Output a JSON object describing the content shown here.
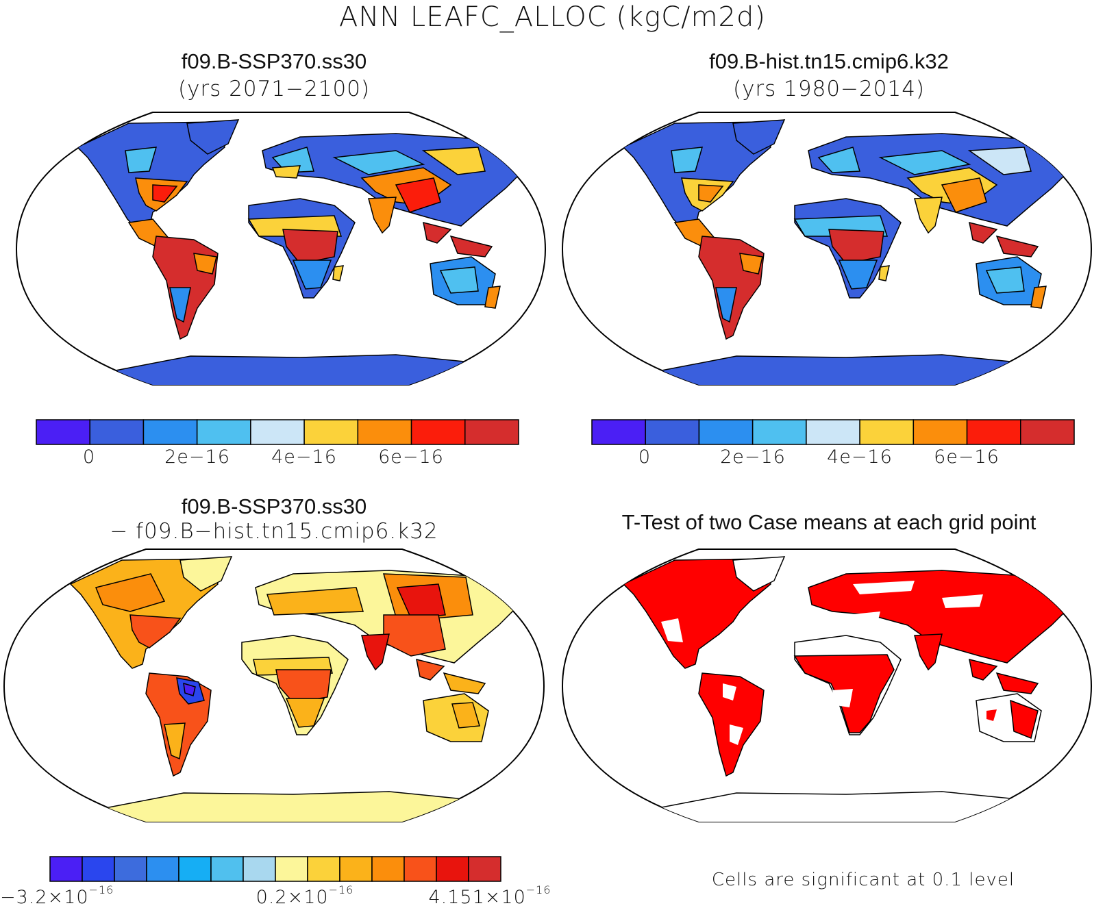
{
  "figure": {
    "title": "ANN LEAFC_ALLOC (kgC/m2d)"
  },
  "panels": {
    "top_left": {
      "case": "f09.B-SSP370.ss30",
      "years": "(yrs 2071−2100)"
    },
    "top_right": {
      "case": "f09.B-hist.tn15.cmip6.k32",
      "years": "(yrs 1980−2014)"
    },
    "bottom_left": {
      "case": "f09.B-SSP370.ss30",
      "subtitle": "− f09.B−hist.tn15.cmip6.k32"
    },
    "bottom_right": {
      "title": "T-Test of two Case means at each grid point",
      "note": "Cells are significant at 0.1 level"
    }
  },
  "colorbars": {
    "case_bar": {
      "colors": [
        "#4b1ff5",
        "#3a5fdd",
        "#2c8ff0",
        "#4fc0f0",
        "#cce6f7",
        "#fbd23a",
        "#fb8e0c",
        "#fb1d0b",
        "#d52d2d"
      ],
      "ticks": [
        "0",
        "2e−16",
        "4e−16",
        "6e−16"
      ]
    },
    "diff_bar": {
      "colors": [
        "#4b1ff5",
        "#2a46ee",
        "#3d6cdd",
        "#2c8ff0",
        "#16aef4",
        "#50c0ee",
        "#a9d8ef",
        "#fcf69a",
        "#fbd23a",
        "#fbb21a",
        "#fb8e0c",
        "#f8521a",
        "#e8140d",
        "#d52d2d"
      ],
      "ticks": [
        {
          "mantissa": "−3.2×10",
          "exp": "−16"
        },
        {
          "mantissa": "0.2×10",
          "exp": "−16"
        },
        {
          "mantissa": "4.151×10",
          "exp": "−16"
        }
      ]
    }
  },
  "map_colors": {
    "ocean": "#ffffff",
    "coast": "#000000",
    "ttest_significant": "#ff0000"
  }
}
